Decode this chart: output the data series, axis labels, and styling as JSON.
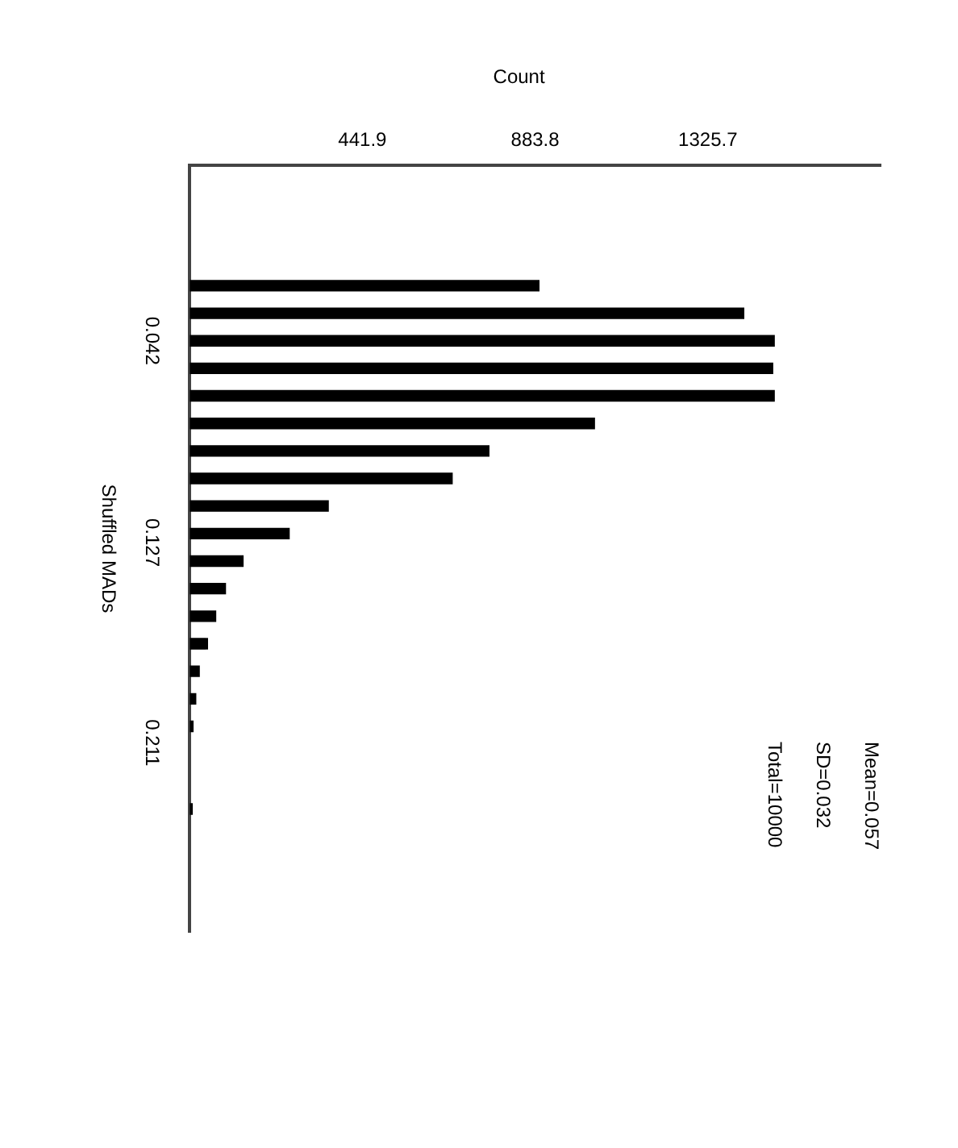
{
  "chart_data": {
    "type": "histogram",
    "orientation": "horizontal",
    "xlabel": "Count",
    "ylabel": "Shuffled MADs",
    "bins": [
      0.013,
      0.0246,
      0.0362,
      0.0478,
      0.0594,
      0.071,
      0.0826,
      0.0942,
      0.1058,
      0.1174,
      0.129,
      0.1406,
      0.1522,
      0.1638,
      0.1754,
      0.187,
      0.1986,
      0.2102,
      0.2218,
      0.2334,
      0.245
    ],
    "values": [
      895,
      1419,
      1497,
      1493,
      1497,
      1037,
      767,
      673,
      356,
      256,
      138,
      93,
      68,
      47,
      26,
      17,
      10,
      0,
      0,
      8
    ],
    "color": "#000000",
    "xlim": [
      0,
      1767.6
    ],
    "xticks": [
      {
        "value": 441.9,
        "label": "441.9"
      },
      {
        "value": 883.8,
        "label": "883.8"
      },
      {
        "value": 1325.7,
        "label": "1325.7"
      }
    ],
    "ylim": [
      0.291,
      -0.032
    ],
    "yticks": [
      {
        "value": 0.042,
        "label": "0.042"
      },
      {
        "value": 0.127,
        "label": "0.127"
      },
      {
        "value": 0.211,
        "label": "0.211"
      }
    ],
    "grid": false,
    "legend": false,
    "annotations": [
      "Mean=0.057",
      "SD=0.032",
      "Total=10000"
    ]
  }
}
